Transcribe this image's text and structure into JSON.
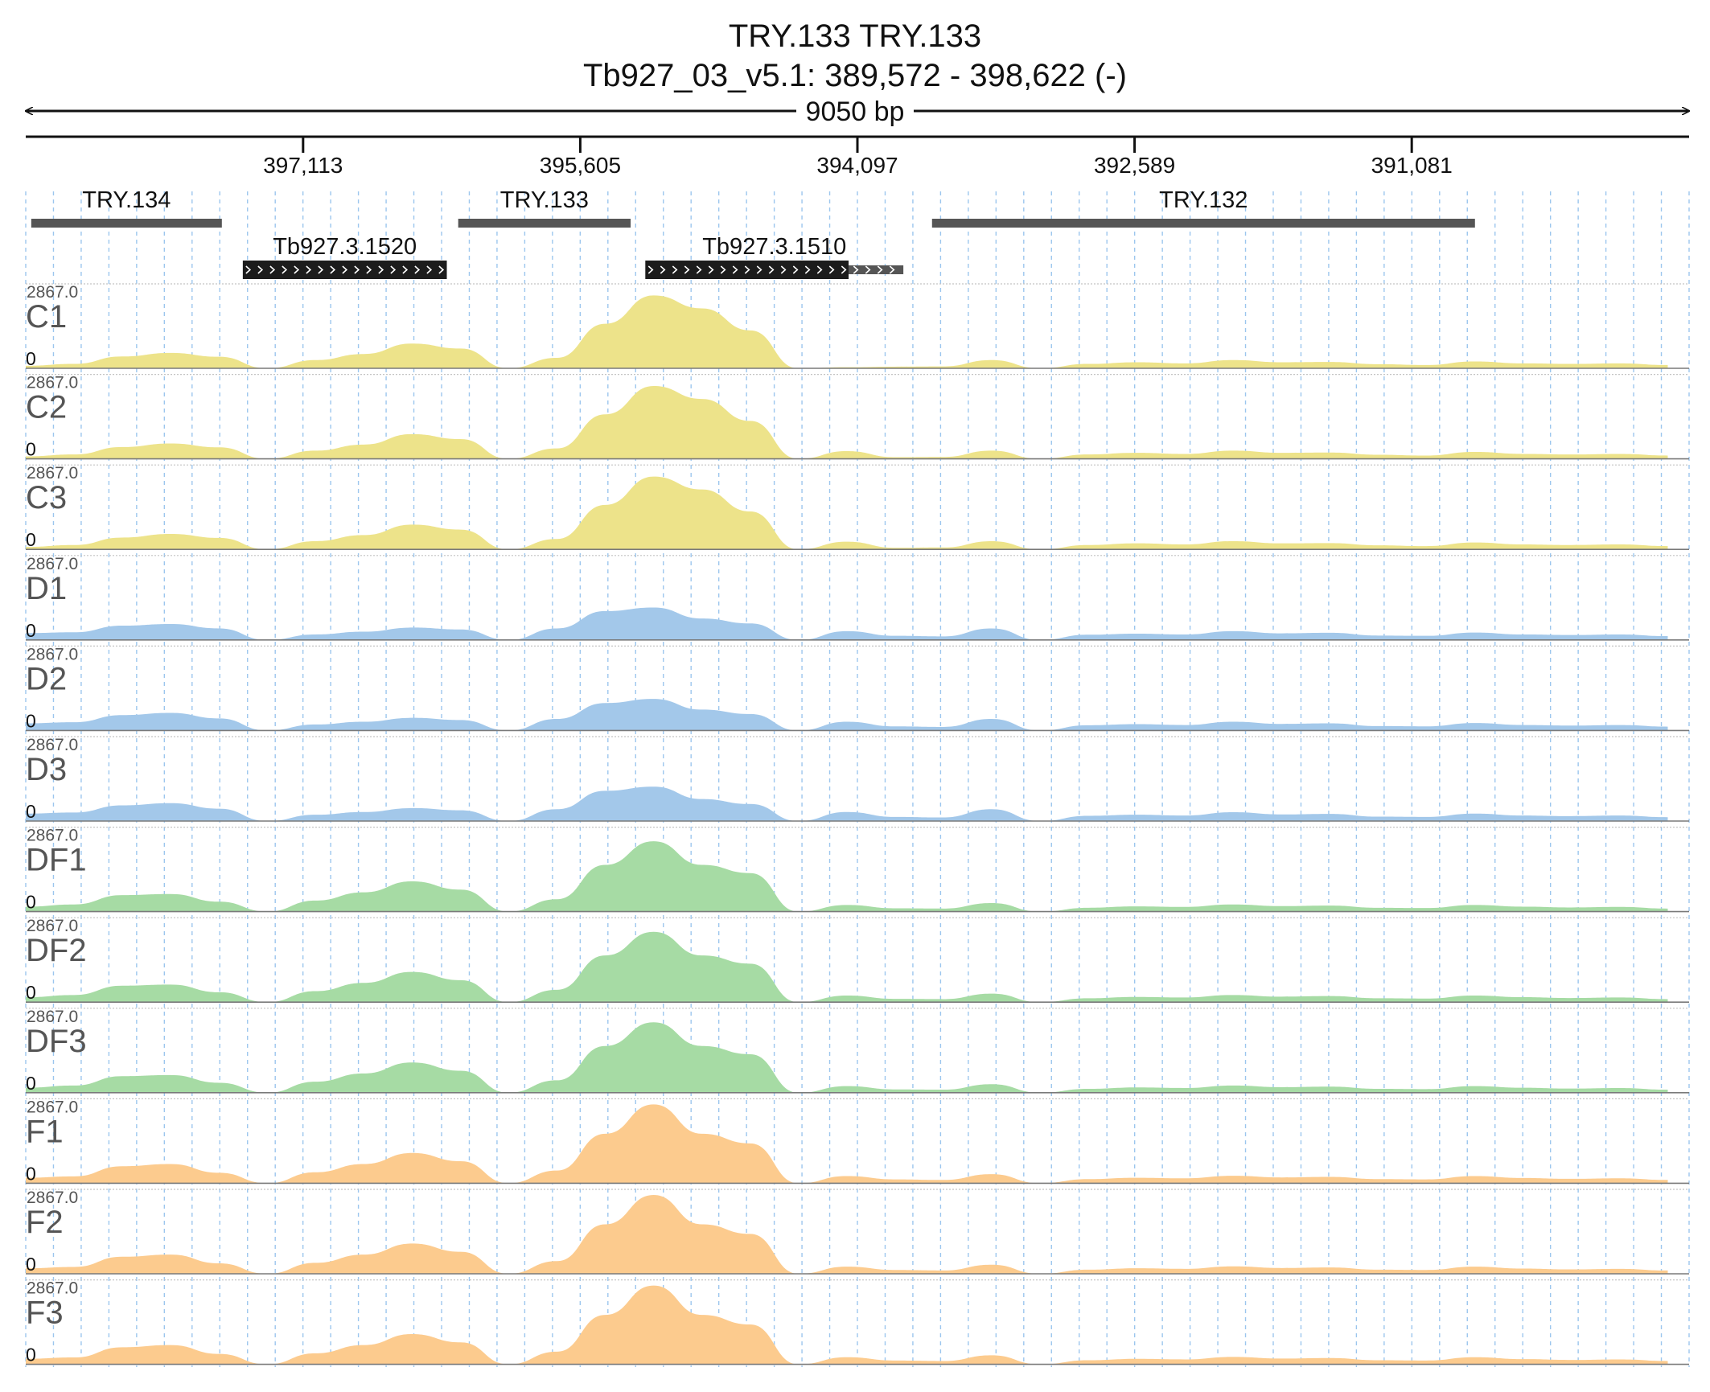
{
  "header": {
    "title": "TRY.133  TRY.133",
    "locus": "Tb927_03_v5.1: 389,572 - 398,622 (-)",
    "span": "9050 bp"
  },
  "chart_data": {
    "type": "area",
    "title": "TRY.133  TRY.133",
    "subtitle": "Tb927_03_v5.1: 389,572 - 398,622 (-)",
    "chromosome": "Tb927_03_v5.1",
    "strand": "-",
    "x_axis": {
      "range": [
        398622,
        389572
      ],
      "reversed": true,
      "span_label": "9050 bp",
      "ticks": [
        397113,
        395605,
        394097,
        392589,
        391081
      ],
      "tick_labels": [
        "397,113",
        "395,605",
        "394,097",
        "392,589",
        "391,081"
      ]
    },
    "y_axis": {
      "range": [
        0,
        2867.0
      ],
      "max_label": "2867.0",
      "min_label": "0"
    },
    "gene_tracks": [
      {
        "name": "TRY.134",
        "start": 398592,
        "end": 397555,
        "row": 0,
        "style": "gene"
      },
      {
        "name": "Tb927.3.1520",
        "start": 397441,
        "end": 396331,
        "row": 1,
        "style": "cds"
      },
      {
        "name": "TRY.133",
        "start": 396269,
        "end": 395331,
        "row": 0,
        "style": "gene"
      },
      {
        "name": "Tb927.3.1510",
        "start": 395251,
        "end": 393847,
        "row": 1,
        "style": "cds",
        "cds_end": 394145
      },
      {
        "name": "TRY.132",
        "start": 393691,
        "end": 390737,
        "row": 0,
        "style": "gene"
      }
    ],
    "grid": "on",
    "signal_x_bins": 35,
    "bin_positions": [
      398622,
      398359,
      398097,
      397834,
      397571,
      397308,
      397046,
      396783,
      396520,
      396257,
      395995,
      395732,
      395469,
      395206,
      394943,
      394681,
      394418,
      394155,
      393892,
      393630,
      393367,
      393104,
      392841,
      392579,
      392316,
      392053,
      391790,
      391527,
      391265,
      391002,
      390739,
      390476,
      390214,
      389951,
      389688
    ],
    "series": [
      {
        "name": "C1",
        "color": "#ede38a",
        "values": [
          90,
          160,
          430,
          560,
          420,
          0,
          300,
          520,
          900,
          720,
          0,
          380,
          1620,
          2650,
          2180,
          1380,
          0,
          40,
          60,
          70,
          300,
          0,
          160,
          220,
          180,
          300,
          220,
          230,
          150,
          120,
          250,
          180,
          160,
          180,
          120
        ]
      },
      {
        "name": "C2",
        "color": "#ede38a",
        "values": [
          90,
          160,
          430,
          560,
          420,
          0,
          300,
          520,
          900,
          720,
          0,
          380,
          1620,
          2650,
          2180,
          1380,
          0,
          280,
          60,
          70,
          300,
          0,
          160,
          220,
          180,
          300,
          220,
          230,
          150,
          120,
          250,
          180,
          160,
          180,
          120
        ]
      },
      {
        "name": "C3",
        "color": "#ede38a",
        "values": [
          90,
          160,
          430,
          560,
          420,
          0,
          300,
          520,
          900,
          720,
          0,
          380,
          1620,
          2650,
          2180,
          1380,
          0,
          280,
          60,
          70,
          300,
          0,
          160,
          220,
          180,
          300,
          220,
          230,
          150,
          120,
          250,
          180,
          160,
          180,
          120
        ]
      },
      {
        "name": "D1",
        "color": "#a3c8ea",
        "values": [
          250,
          280,
          520,
          580,
          420,
          0,
          200,
          300,
          450,
          380,
          0,
          420,
          1050,
          1180,
          780,
          600,
          0,
          320,
          150,
          130,
          420,
          0,
          190,
          230,
          200,
          320,
          240,
          260,
          160,
          150,
          270,
          200,
          180,
          200,
          140
        ]
      },
      {
        "name": "D2",
        "color": "#a3c8ea",
        "values": [
          260,
          300,
          560,
          640,
          440,
          0,
          220,
          320,
          460,
          380,
          0,
          420,
          1000,
          1150,
          760,
          600,
          0,
          320,
          150,
          130,
          420,
          0,
          190,
          230,
          200,
          320,
          240,
          260,
          160,
          150,
          270,
          200,
          180,
          200,
          140
        ]
      },
      {
        "name": "D3",
        "color": "#a3c8ea",
        "values": [
          270,
          310,
          570,
          650,
          450,
          0,
          230,
          330,
          470,
          390,
          0,
          430,
          1100,
          1250,
          800,
          620,
          0,
          330,
          150,
          130,
          430,
          0,
          190,
          230,
          200,
          320,
          240,
          260,
          160,
          150,
          270,
          200,
          180,
          200,
          140
        ]
      },
      {
        "name": "DF1",
        "color": "#a6dba4",
        "values": [
          180,
          260,
          600,
          640,
          360,
          0,
          400,
          700,
          1100,
          800,
          0,
          450,
          1700,
          2560,
          1700,
          1400,
          0,
          240,
          120,
          110,
          310,
          0,
          140,
          190,
          170,
          260,
          200,
          220,
          140,
          130,
          240,
          180,
          150,
          170,
          110
        ]
      },
      {
        "name": "DF2",
        "color": "#a6dba4",
        "values": [
          180,
          260,
          600,
          640,
          360,
          0,
          400,
          700,
          1100,
          800,
          0,
          450,
          1700,
          2560,
          1700,
          1400,
          0,
          240,
          120,
          110,
          310,
          0,
          140,
          190,
          170,
          260,
          200,
          220,
          140,
          130,
          240,
          180,
          150,
          170,
          110
        ]
      },
      {
        "name": "DF3",
        "color": "#a6dba4",
        "values": [
          180,
          260,
          600,
          640,
          360,
          0,
          400,
          700,
          1100,
          800,
          0,
          450,
          1700,
          2560,
          1700,
          1400,
          0,
          240,
          120,
          110,
          310,
          0,
          140,
          190,
          170,
          260,
          200,
          220,
          140,
          130,
          240,
          180,
          150,
          170,
          110
        ]
      },
      {
        "name": "F1",
        "color": "#fccb8e",
        "values": [
          200,
          250,
          620,
          700,
          380,
          0,
          400,
          700,
          1100,
          800,
          0,
          460,
          1800,
          2867,
          1800,
          1450,
          0,
          260,
          140,
          120,
          330,
          0,
          150,
          200,
          180,
          270,
          210,
          230,
          150,
          140,
          260,
          190,
          160,
          180,
          120
        ]
      },
      {
        "name": "F2",
        "color": "#fccb8e",
        "values": [
          200,
          250,
          620,
          700,
          380,
          0,
          400,
          700,
          1100,
          800,
          0,
          460,
          1800,
          2867,
          1800,
          1450,
          0,
          260,
          140,
          120,
          330,
          0,
          150,
          200,
          180,
          270,
          210,
          230,
          150,
          140,
          260,
          190,
          160,
          180,
          120
        ]
      },
      {
        "name": "F3",
        "color": "#fccb8e",
        "values": [
          200,
          250,
          620,
          700,
          380,
          0,
          400,
          700,
          1100,
          800,
          0,
          460,
          1800,
          2867,
          1800,
          1450,
          0,
          260,
          140,
          120,
          330,
          0,
          150,
          200,
          180,
          270,
          210,
          230,
          150,
          140,
          260,
          190,
          160,
          180,
          120
        ]
      }
    ]
  }
}
